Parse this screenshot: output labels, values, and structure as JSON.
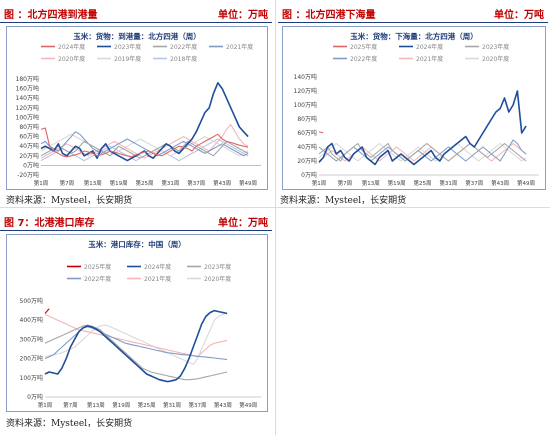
{
  "panels": [
    {
      "title": "图 ：北方四港到港量",
      "unit": "单位：万吨",
      "source": "资料来源：Mysteel，长安期货",
      "chart_data": {
        "type": "line",
        "title": "玉米：货物：到港量：北方四港（周）",
        "yticks": [
          "180万吨",
          "160万吨",
          "140万吨",
          "120万吨",
          "100万吨",
          "80万吨",
          "60万吨",
          "40万吨",
          "20万吨",
          "0万吨",
          "-20万吨"
        ],
        "ylim": [
          -20,
          180
        ],
        "xticks": [
          "第1周",
          "第7周",
          "第13周",
          "第19周",
          "第25周",
          "第31周",
          "第37周",
          "第43周",
          "第49周"
        ],
        "legend_position": "top",
        "series": [
          {
            "name": "2024年度",
            "color": "#e06666",
            "values": [
              75,
              78,
              40,
              30,
              25,
              20,
              18,
              20,
              22,
              25,
              30,
              28,
              25,
              20,
              22,
              25,
              30,
              28,
              25,
              22,
              20,
              18,
              22,
              25,
              28,
              30,
              25,
              22,
              20,
              25,
              30,
              35,
              40,
              38,
              35,
              30,
              40,
              45,
              50,
              55,
              60,
              65,
              55,
              50,
              48,
              45,
              42,
              40,
              38
            ]
          },
          {
            "name": "2023年度",
            "color": "#1f4e9a",
            "values": [
              35,
              40,
              35,
              30,
              45,
              25,
              20,
              30,
              40,
              35,
              20,
              25,
              30,
              15,
              35,
              45,
              30,
              25,
              20,
              15,
              10,
              15,
              20,
              25,
              30,
              20,
              15,
              25,
              35,
              45,
              40,
              30,
              25,
              35,
              45,
              55,
              70,
              90,
              110,
              120,
              150,
              172,
              160,
              140,
              120,
              100,
              80,
              70,
              60
            ]
          },
          {
            "name": "2022年度",
            "color": "#a6a6a6",
            "values": [
              20,
              25,
              30,
              35,
              40,
              35,
              30,
              25,
              30,
              40,
              50,
              45,
              40,
              35,
              30,
              25,
              20,
              30,
              40,
              35,
              30,
              25,
              20,
              15,
              20,
              25,
              30,
              35,
              40,
              45,
              40,
              35,
              30,
              40,
              50,
              45,
              40,
              35,
              30,
              25,
              20,
              30,
              40,
              50,
              45,
              40,
              35,
              30,
              25
            ]
          },
          {
            "name": "2021年度",
            "color": "#7f9cc9",
            "values": [
              45,
              50,
              40,
              35,
              30,
              40,
              50,
              60,
              70,
              65,
              55,
              45,
              35,
              30,
              25,
              30,
              35,
              40,
              45,
              50,
              55,
              50,
              45,
              40,
              35,
              30,
              25,
              20,
              25,
              30,
              35,
              40,
              45,
              50,
              45,
              40,
              35,
              30,
              25,
              30,
              35,
              40,
              45,
              40,
              35,
              30,
              25,
              20,
              25
            ]
          },
          {
            "name": "2020年度",
            "color": "#f4b6b6",
            "values": [
              15,
              20,
              25,
              30,
              35,
              40,
              45,
              40,
              35,
              30,
              25,
              20,
              25,
              30,
              35,
              40,
              45,
              50,
              45,
              40,
              35,
              30,
              25,
              20,
              15,
              20,
              25,
              30,
              35,
              40,
              45,
              50,
              55,
              60,
              55,
              50,
              45,
              40,
              35,
              30,
              40,
              50,
              60,
              75,
              85,
              70,
              55,
              45,
              40
            ]
          },
          {
            "name": "2019年度",
            "color": "#d9d9d9",
            "values": [
              30,
              35,
              40,
              45,
              50,
              55,
              60,
              65,
              60,
              55,
              50,
              45,
              40,
              35,
              30,
              25,
              20,
              25,
              30,
              35,
              40,
              45,
              50,
              55,
              50,
              45,
              40,
              35,
              30,
              25,
              20,
              25,
              30,
              35,
              40,
              45,
              50,
              55,
              60,
              55,
              50,
              45,
              40,
              35,
              30,
              25,
              20,
              25,
              30
            ]
          },
          {
            "name": "2018年度",
            "color": "#b4c6e7",
            "values": [
              10,
              15,
              20,
              25,
              30,
              35,
              30,
              25,
              20,
              15,
              10,
              15,
              20,
              25,
              30,
              35,
              40,
              35,
              30,
              25,
              20,
              15,
              10,
              15,
              20,
              25,
              30,
              35,
              30,
              25,
              20,
              15,
              10,
              15,
              20,
              25,
              30,
              35,
              40,
              45,
              50,
              55,
              50,
              45,
              40,
              35,
              30,
              25,
              20
            ]
          }
        ]
      }
    },
    {
      "title": "图 ：北方四港下海量",
      "unit": "单位：万吨",
      "source": "资料来源：Mysteel，长安期货",
      "chart_data": {
        "type": "line",
        "title": "玉米：货物：下海量：北方四港（周）",
        "yticks": [
          "140万吨",
          "120万吨",
          "100万吨",
          "80万吨",
          "60万吨",
          "40万吨",
          "20万吨",
          "0万吨"
        ],
        "ylim": [
          0,
          140
        ],
        "xticks": [
          "第1周",
          "第7周",
          "第13周",
          "第19周",
          "第25周",
          "第31周",
          "第37周",
          "第43周",
          "第49周"
        ],
        "legend_position": "top",
        "series": [
          {
            "name": "2025年度",
            "color": "#e06666",
            "values": [
              62,
              60
            ]
          },
          {
            "name": "2024年度",
            "color": "#1f4e9a",
            "values": [
              18,
              25,
              40,
              45,
              30,
              35,
              25,
              20,
              30,
              35,
              40,
              25,
              20,
              15,
              25,
              30,
              35,
              20,
              25,
              30,
              25,
              20,
              15,
              20,
              25,
              30,
              35,
              25,
              20,
              30,
              35,
              40,
              45,
              50,
              55,
              45,
              40,
              50,
              60,
              70,
              80,
              90,
              95,
              110,
              90,
              100,
              120,
              60,
              70
            ]
          },
          {
            "name": "2023年度",
            "color": "#a6a6a6",
            "values": [
              30,
              35,
              40,
              30,
              25,
              20,
              30,
              35,
              40,
              45,
              35,
              30,
              25,
              30,
              35,
              40,
              45,
              35,
              30,
              25,
              20,
              25,
              30,
              35,
              40,
              45,
              40,
              35,
              30,
              25,
              20,
              25,
              30,
              35,
              40,
              45,
              40,
              35,
              30,
              25,
              30,
              35,
              40,
              45,
              40,
              35,
              30,
              25,
              20
            ]
          },
          {
            "name": "2022年度",
            "color": "#7f9cc9",
            "values": [
              40,
              35,
              30,
              25,
              20,
              25,
              30,
              35,
              40,
              35,
              30,
              25,
              20,
              25,
              30,
              35,
              40,
              35,
              30,
              25,
              20,
              25,
              30,
              35,
              30,
              25,
              20,
              25,
              30,
              35,
              40,
              35,
              30,
              25,
              20,
              25,
              30,
              35,
              40,
              35,
              30,
              25,
              20,
              30,
              40,
              50,
              45,
              35,
              30
            ]
          },
          {
            "name": "2021年度",
            "color": "#f4b6b6",
            "values": [
              20,
              25,
              30,
              35,
              30,
              25,
              20,
              25,
              30,
              35,
              40,
              35,
              30,
              25,
              20,
              25,
              30,
              35,
              40,
              35,
              30,
              25,
              20,
              25,
              30,
              35,
              40,
              35,
              30,
              25,
              20,
              25,
              30,
              35,
              40,
              45,
              40,
              35,
              30,
              25,
              20,
              25,
              30,
              35,
              40,
              45,
              40,
              35,
              30
            ]
          },
          {
            "name": "2020年度",
            "color": "#d9d9d9",
            "values": [
              25,
              30,
              35,
              40,
              45,
              40,
              35,
              30,
              25,
              20,
              25,
              30,
              35,
              40,
              45,
              40,
              35,
              30,
              25,
              20,
              25,
              30,
              35,
              40,
              35,
              30,
              25,
              20,
              25,
              30,
              35,
              40,
              45,
              40,
              35,
              30,
              25,
              20,
              25,
              30,
              35,
              40,
              45,
              40,
              35,
              30,
              25,
              20,
              25
            ]
          }
        ]
      }
    },
    {
      "title": "图 7：北港港口库存",
      "unit": "单位：万吨",
      "source": "资料来源：Mysteel，长安期货",
      "chart_data": {
        "type": "line",
        "title": "玉米：港口库存：中国（周）",
        "yticks": [
          "500万吨",
          "400万吨",
          "300万吨",
          "200万吨",
          "100万吨",
          "0万吨"
        ],
        "ylim": [
          0,
          500
        ],
        "xticks": [
          "第1周",
          "第7周",
          "第13周",
          "第19周",
          "第25周",
          "第31周",
          "第37周",
          "第43周",
          "第49周"
        ],
        "legend_position": "top",
        "series": [
          {
            "name": "2025年度",
            "color": "#c00000",
            "values": [
              435,
              460
            ]
          },
          {
            "name": "2024年度",
            "color": "#1f4e9a",
            "values": [
              120,
              130,
              125,
              120,
              150,
              200,
              260,
              300,
              340,
              360,
              370,
              365,
              355,
              340,
              320,
              300,
              280,
              260,
              240,
              220,
              200,
              180,
              160,
              140,
              120,
              110,
              100,
              90,
              85,
              80,
              85,
              90,
              110,
              150,
              200,
              260,
              320,
              380,
              420,
              440,
              450,
              445,
              440,
              435
            ]
          },
          {
            "name": "2023年度",
            "color": "#a6a6a6",
            "values": [
              280,
              290,
              300,
              310,
              320,
              330,
              340,
              350,
              360,
              370,
              375,
              370,
              360,
              350,
              330,
              310,
              290,
              270,
              250,
              230,
              210,
              190,
              170,
              150,
              140,
              130,
              125,
              120,
              115,
              110,
              105,
              100,
              95,
              90,
              90,
              92,
              95,
              100,
              105,
              110,
              115,
              120,
              125,
              130
            ]
          },
          {
            "name": "2022年度",
            "color": "#7f9cc9",
            "values": [
              200,
              210,
              220,
              240,
              260,
              280,
              300,
              320,
              340,
              360,
              365,
              360,
              350,
              340,
              330,
              320,
              310,
              300,
              290,
              280,
              275,
              270,
              265,
              260,
              255,
              250,
              245,
              240,
              235,
              230,
              228,
              225,
              222,
              220,
              218,
              215,
              212,
              210,
              208,
              205,
              203,
              200,
              198,
              195
            ]
          },
          {
            "name": "2021年度",
            "color": "#f4b6b6",
            "values": [
              430,
              420,
              410,
              400,
              390,
              380,
              370,
              360,
              350,
              345,
              340,
              335,
              330,
              325,
              320,
              315,
              310,
              305,
              300,
              295,
              290,
              285,
              280,
              275,
              270,
              265,
              260,
              255,
              250,
              245,
              240,
              235,
              230,
              225,
              220,
              215,
              210,
              230,
              250,
              270,
              280,
              285,
              290,
              295
            ]
          },
          {
            "name": "2020年度",
            "color": "#d9d9d9",
            "values": [
              210,
              215,
              220,
              225,
              230,
              240,
              250,
              260,
              280,
              300,
              320,
              340,
              360,
              370,
              375,
              370,
              360,
              350,
              340,
              330,
              320,
              310,
              300,
              290,
              280,
              270,
              260,
              250,
              240,
              230,
              220,
              210,
              200,
              190,
              180,
              170,
              200,
              250,
              300,
              350,
              400,
              420,
              430,
              440
            ]
          }
        ]
      }
    }
  ]
}
